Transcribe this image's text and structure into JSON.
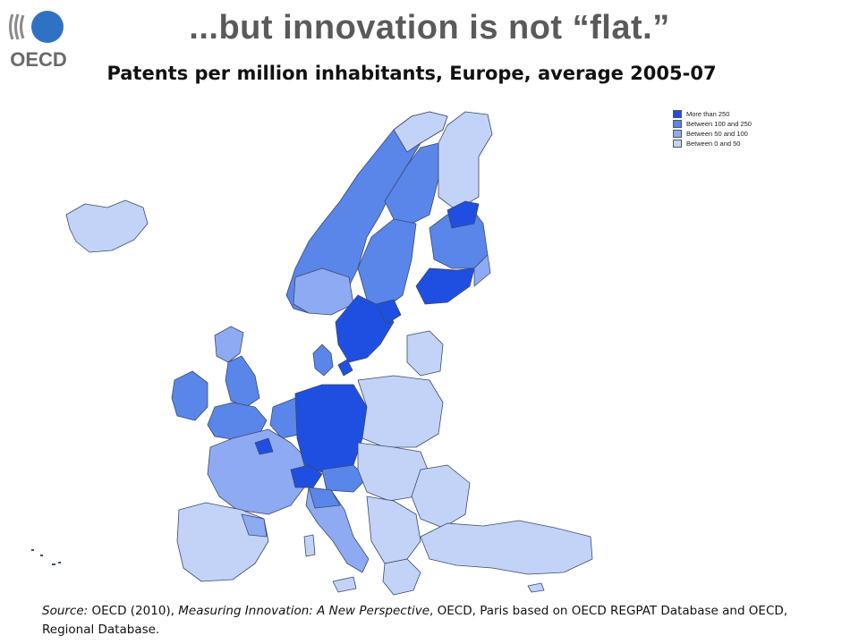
{
  "header": {
    "logo_text": "OECD",
    "title": "...but innovation is not “flat.”",
    "subtitle": "Patents per million inhabitants, Europe, average 2005-07"
  },
  "legend": {
    "items": [
      {
        "label": "More than 250",
        "color": "#1f4fe0"
      },
      {
        "label": "Between 100 and 250",
        "color": "#5a86ea"
      },
      {
        "label": "Between 50 and 100",
        "color": "#8eaaf2"
      },
      {
        "label": "Between 0 and 50",
        "color": "#c3d3f7"
      }
    ]
  },
  "map": {
    "regions_shown": "European regions (Iceland, Scandinavia, British Isles, continental Europe, Turkey)",
    "border_color": "#3a4a6a"
  },
  "source": {
    "label": "Source:",
    "part1": " OECD (2010), ",
    "book_title": "Measuring Innovation: A New Perspective",
    "part2": ", OECD, Paris based on OECD REGPAT Database and OECD, Regional Database."
  }
}
